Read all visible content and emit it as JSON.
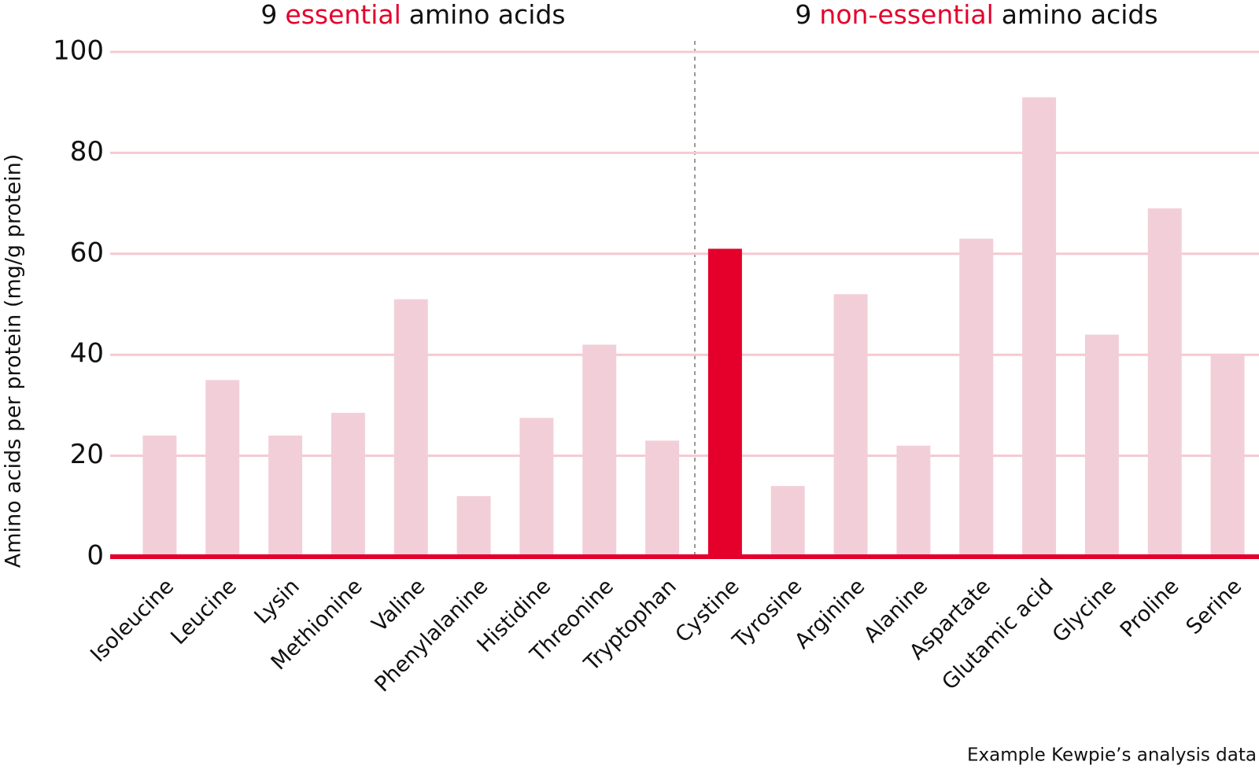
{
  "chart_data": {
    "type": "bar",
    "group_titles": [
      [
        "9",
        "essential",
        "amino acids"
      ],
      [
        "9",
        "non-essential",
        "amino acids"
      ]
    ],
    "y_label": "Amino acids per protein (mg/g protein)",
    "source": "Example Kewpie’s analysis data",
    "categories": [
      "Isoleucine",
      "Leucine",
      "Lysin",
      "Methionine",
      "Valine",
      "Phenylalanine",
      "Histidine",
      "Threonine",
      "Tryptophan",
      "Cystine",
      "Tyrosine",
      "Arginine",
      "Alanine",
      "Aspartate",
      "Glutamic acid",
      "Glycine",
      "Proline",
      "Serine"
    ],
    "values": [
      24,
      35,
      24,
      28.5,
      51,
      12,
      27.5,
      42,
      23,
      61,
      14,
      52,
      22,
      63,
      91,
      44,
      69,
      40
    ],
    "colors": [
      "#f2cfd8",
      "#f2cfd8",
      "#f2cfd8",
      "#f2cfd8",
      "#f2cfd8",
      "#f2cfd8",
      "#f2cfd8",
      "#f2cfd8",
      "#f2cfd8",
      "#e4002b",
      "#f2cfd8",
      "#f2cfd8",
      "#f2cfd8",
      "#f2cfd8",
      "#f2cfd8",
      "#f2cfd8",
      "#f2cfd8",
      "#f2cfd8"
    ],
    "ylim": [
      0,
      100
    ],
    "yticks": [
      0,
      20,
      40,
      60,
      80,
      100
    ],
    "grid": true
  }
}
